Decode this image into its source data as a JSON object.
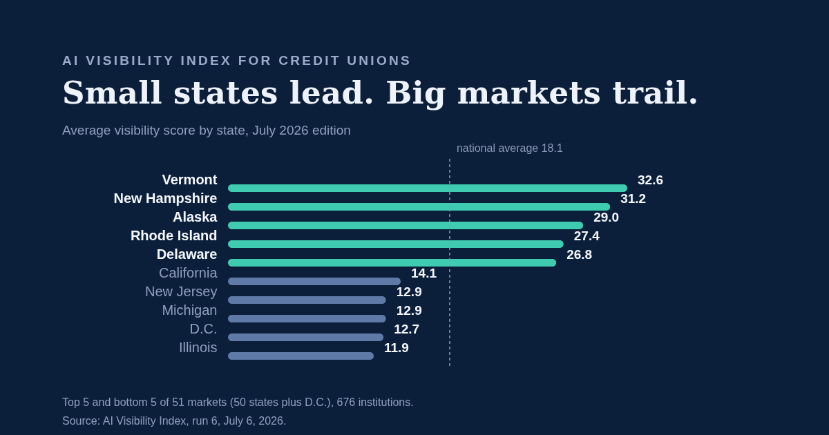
{
  "chart_data": {
    "type": "bar",
    "orientation": "horizontal",
    "title": "Small states lead. Big markets trail.",
    "subtitle": "Average visibility score by state, July 2026 edition",
    "categories": [
      "Vermont",
      "New Hampshire",
      "Alaska",
      "Rhode Island",
      "Delaware",
      "California",
      "New Jersey",
      "Michigan",
      "D.C.",
      "Illinois"
    ],
    "values": [
      32.6,
      31.2,
      29.0,
      27.4,
      26.8,
      14.1,
      12.9,
      12.9,
      12.7,
      11.9
    ],
    "colors": [
      "#3ecbb0",
      "#3ecbb0",
      "#3ecbb0",
      "#3ecbb0",
      "#3ecbb0",
      "#5f7aa6",
      "#5f7aa6",
      "#5f7aa6",
      "#5f7aa6",
      "#5f7aa6"
    ],
    "value_labels": [
      "32.6",
      "31.2",
      "29.0",
      "27.4",
      "26.8",
      "14.1",
      "12.9",
      "12.9",
      "12.7",
      "11.9"
    ],
    "ref_lines": [
      {
        "axis": "x",
        "value": 18.1,
        "label": "national average 18.1",
        "color": "#8a9bb8",
        "line_style": "dashed"
      }
    ],
    "grid": false,
    "annotations": [
      "AI VISIBILITY INDEX FOR CREDIT UNIONS",
      "Top 5 and bottom 5 of 51 markets (50 states plus D.C.), 676 institutions.",
      "Source: AI Visibility Index, run 6, July 6, 2026."
    ]
  }
}
